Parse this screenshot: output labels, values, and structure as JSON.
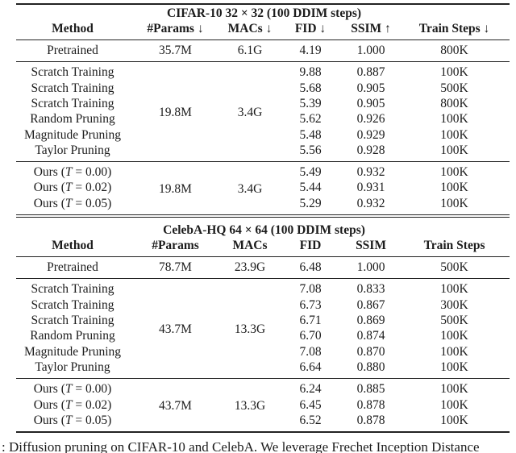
{
  "colors": {
    "background": "#ffffff",
    "text": "#1c1c1c",
    "rule": "#222222"
  },
  "labels": {
    "ours_open": "Ours (",
    "tau": "T",
    "eq": " = ",
    "close": ")"
  },
  "caption": {
    "text": ": Diffusion pruning on CIFAR-10 and CelebA. We leverage Frechet Inception Distance"
  },
  "tables": [
    {
      "title": "CIFAR-10 32 × 32 (100 DDIM steps)",
      "columns": [
        "Method",
        "#Params ↓",
        "MACs ↓",
        "FID ↓",
        "SSIM ↑",
        "Train Steps ↓"
      ],
      "pretrained": {
        "method": "Pretrained",
        "params": "35.7M",
        "macs": "6.1G",
        "fid": "4.19",
        "ssim": "1.000",
        "steps": "800K"
      },
      "baselines": {
        "params": "19.8M",
        "macs": "3.4G",
        "rows": [
          {
            "method": "Scratch Training",
            "fid": "9.88",
            "ssim": "0.887",
            "steps": "100K"
          },
          {
            "method": "Scratch Training",
            "fid": "5.68",
            "ssim": "0.905",
            "steps": "500K"
          },
          {
            "method": "Scratch Training",
            "fid": "5.39",
            "ssim": "0.905",
            "steps": "800K"
          },
          {
            "method": "Random Pruning",
            "fid": "5.62",
            "ssim": "0.926",
            "steps": "100K"
          },
          {
            "method": "Magnitude Pruning",
            "fid": "5.48",
            "ssim": "0.929",
            "steps": "100K"
          },
          {
            "method": "Taylor Pruning",
            "fid": "5.56",
            "ssim": "0.928",
            "steps": "100K"
          }
        ]
      },
      "ours": {
        "params": "19.8M",
        "macs": "3.4G",
        "rows": [
          {
            "threshold": "0.00",
            "fid": "5.49",
            "ssim": "0.932",
            "steps": "100K"
          },
          {
            "threshold": "0.02",
            "fid": "5.44",
            "ssim": "0.931",
            "steps": "100K"
          },
          {
            "threshold": "0.05",
            "fid": "5.29",
            "ssim": "0.932",
            "steps": "100K",
            "fid_bold": true,
            "ssim_bold": true
          }
        ]
      }
    },
    {
      "title": "CelebA-HQ 64 × 64 (100 DDIM steps)",
      "columns": [
        "Method",
        "#Params",
        "MACs",
        "FID",
        "SSIM",
        "Train Steps"
      ],
      "pretrained": {
        "method": "Pretrained",
        "params": "78.7M",
        "macs": "23.9G",
        "fid": "6.48",
        "ssim": "1.000",
        "steps": "500K"
      },
      "baselines": {
        "params": "43.7M",
        "macs": "13.3G",
        "rows": [
          {
            "method": "Scratch Training",
            "fid": "7.08",
            "ssim": "0.833",
            "steps": "100K"
          },
          {
            "method": "Scratch Training",
            "fid": "6.73",
            "ssim": "0.867",
            "steps": "300K"
          },
          {
            "method": "Scratch Training",
            "fid": "6.71",
            "ssim": "0.869",
            "steps": "500K"
          },
          {
            "method": "Random Pruning",
            "fid": "6.70",
            "ssim": "0.874",
            "steps": "100K"
          },
          {
            "method": "Magnitude Pruning",
            "fid": "7.08",
            "ssim": "0.870",
            "steps": "100K"
          },
          {
            "method": "Taylor Pruning",
            "fid": "6.64",
            "ssim": "0.880",
            "steps": "100K"
          }
        ]
      },
      "ours": {
        "params": "43.7M",
        "macs": "13.3G",
        "rows": [
          {
            "threshold": "0.00",
            "fid": "6.24",
            "ssim": "0.885",
            "steps": "100K",
            "fid_bold": true,
            "ssim_bold": true
          },
          {
            "threshold": "0.02",
            "fid": "6.45",
            "ssim": "0.878",
            "steps": "100K"
          },
          {
            "threshold": "0.05",
            "fid": "6.52",
            "ssim": "0.878",
            "steps": "100K"
          }
        ]
      }
    }
  ]
}
